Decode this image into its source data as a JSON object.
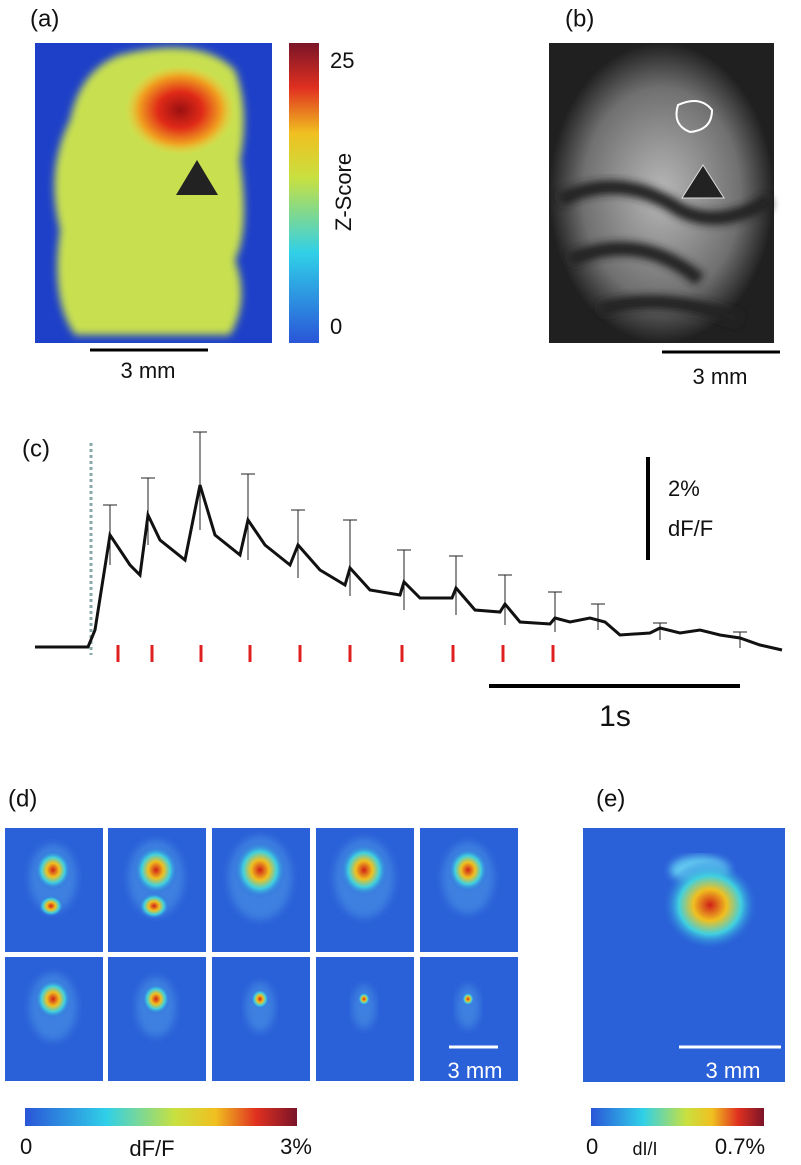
{
  "panels": {
    "a": {
      "label": "(a)",
      "colorbar": {
        "max": "25",
        "min": "0",
        "title": "Z-Score"
      },
      "scale_bar": "3 mm"
    },
    "b": {
      "label": "(b)",
      "scale_bar": "3 mm"
    },
    "c": {
      "label": "(c)",
      "vertical_scale": {
        "value": "2%",
        "unit": "dF/F"
      },
      "time_scale": "1s"
    },
    "d": {
      "label": "(d)",
      "scale_bar": "3 mm",
      "colorbar": {
        "min": "0",
        "title": "dF/F",
        "max": "3%"
      }
    },
    "e": {
      "label": "(e)",
      "scale_bar": "3 mm",
      "colorbar": {
        "min": "0",
        "title": "dI/I",
        "max": "0.7%"
      }
    }
  }
}
